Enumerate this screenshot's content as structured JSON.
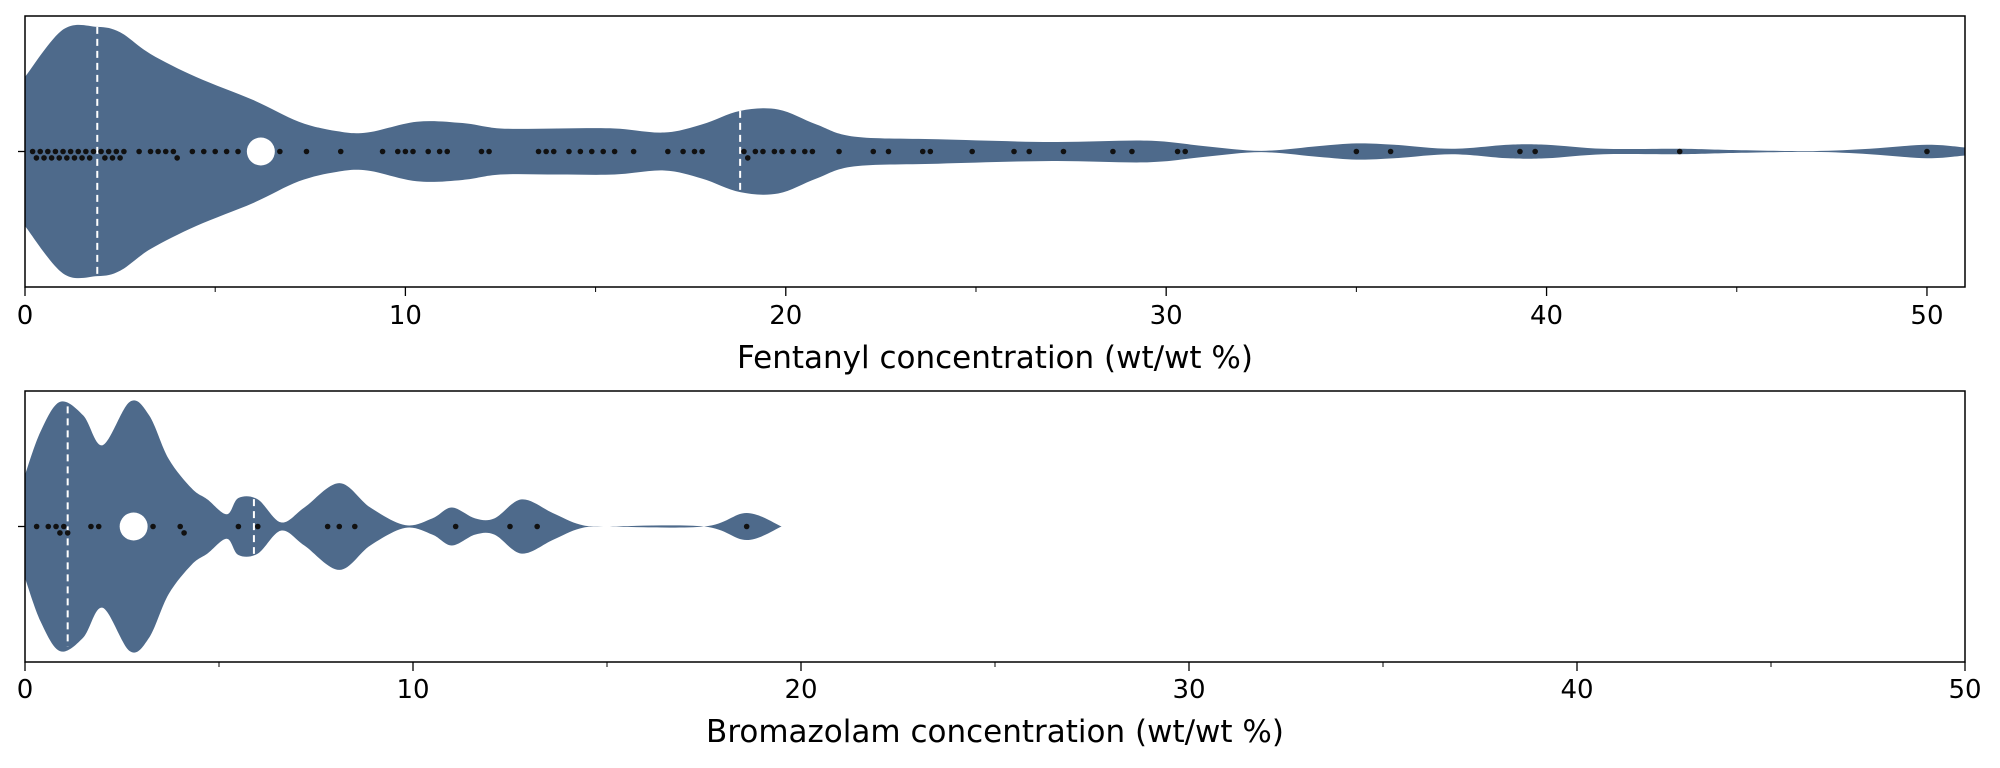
{
  "chart_data": [
    {
      "type": "violin",
      "xlabel": "Fentanyl concentration (wt/wt %)",
      "xlim": [
        0,
        51
      ],
      "x_ticks_major": [
        0,
        10,
        20,
        30,
        40,
        50
      ],
      "x_ticks_minor": [
        5,
        15,
        25,
        35,
        45
      ],
      "fill_color": "#4e6a8b",
      "point_color": "#111111",
      "mean": 6.2,
      "quartile_lines": [
        1.9,
        18.8
      ],
      "density_profile": [
        [
          0,
          0.55
        ],
        [
          1.0,
          0.9
        ],
        [
          1.9,
          0.92
        ],
        [
          2.5,
          0.88
        ],
        [
          3.3,
          0.72
        ],
        [
          4.5,
          0.55
        ],
        [
          6.0,
          0.38
        ],
        [
          7.2,
          0.22
        ],
        [
          8.2,
          0.15
        ],
        [
          9.0,
          0.14
        ],
        [
          10.3,
          0.22
        ],
        [
          11.5,
          0.21
        ],
        [
          12.5,
          0.17
        ],
        [
          14.0,
          0.17
        ],
        [
          15.5,
          0.17
        ],
        [
          16.8,
          0.14
        ],
        [
          17.8,
          0.2
        ],
        [
          18.8,
          0.3
        ],
        [
          19.8,
          0.31
        ],
        [
          20.8,
          0.2
        ],
        [
          21.8,
          0.11
        ],
        [
          24.0,
          0.09
        ],
        [
          27.0,
          0.07
        ],
        [
          29.5,
          0.08
        ],
        [
          31.0,
          0.04
        ],
        [
          32.5,
          0.005
        ],
        [
          34.0,
          0.04
        ],
        [
          35.0,
          0.06
        ],
        [
          36.0,
          0.05
        ],
        [
          37.5,
          0.02
        ],
        [
          39.0,
          0.05
        ],
        [
          40.0,
          0.05
        ],
        [
          41.5,
          0.02
        ],
        [
          43.5,
          0.02
        ],
        [
          45.0,
          0.01
        ],
        [
          47.0,
          0.003
        ],
        [
          48.5,
          0.02
        ],
        [
          50.0,
          0.05
        ],
        [
          51.0,
          0.03
        ]
      ],
      "points": [
        0.2,
        0.3,
        0.4,
        0.5,
        0.6,
        0.7,
        0.8,
        0.9,
        1.0,
        1.1,
        1.2,
        1.3,
        1.4,
        1.5,
        1.6,
        1.7,
        1.8,
        2.0,
        2.1,
        2.2,
        2.3,
        2.4,
        2.5,
        2.6,
        3.0,
        3.3,
        3.5,
        3.7,
        3.9,
        4.0,
        4.4,
        4.7,
        5.0,
        5.3,
        5.6,
        6.7,
        7.4,
        8.3,
        9.4,
        9.8,
        10.0,
        10.2,
        10.6,
        10.9,
        11.1,
        12.0,
        12.2,
        13.5,
        13.7,
        13.9,
        14.3,
        14.6,
        14.9,
        15.2,
        15.5,
        16.0,
        16.9,
        17.3,
        17.6,
        17.8,
        18.9,
        19.0,
        19.2,
        19.4,
        19.7,
        19.9,
        20.2,
        20.5,
        20.7,
        21.4,
        22.3,
        22.7,
        23.6,
        23.8,
        24.9,
        26.0,
        26.4,
        27.3,
        28.6,
        29.1,
        30.3,
        30.5,
        35.0,
        35.9,
        39.3,
        39.7,
        43.5,
        50.0
      ]
    },
    {
      "type": "violin",
      "xlabel": "Bromazolam concentration (wt/wt %)",
      "xlim": [
        0,
        50
      ],
      "x_ticks_major": [
        0,
        10,
        20,
        30,
        40,
        50
      ],
      "x_ticks_minor": [
        5,
        15,
        25,
        35,
        45
      ],
      "fill_color": "#4e6a8b",
      "point_color": "#111111",
      "mean": 2.8,
      "quartile_lines": [
        1.1,
        5.9
      ],
      "density_profile": [
        [
          0,
          0.38
        ],
        [
          0.4,
          0.7
        ],
        [
          0.9,
          0.92
        ],
        [
          1.5,
          0.82
        ],
        [
          2.0,
          0.6
        ],
        [
          2.7,
          0.92
        ],
        [
          3.2,
          0.82
        ],
        [
          3.7,
          0.5
        ],
        [
          4.3,
          0.28
        ],
        [
          4.7,
          0.2
        ],
        [
          5.2,
          0.09
        ],
        [
          5.5,
          0.21
        ],
        [
          6.0,
          0.2
        ],
        [
          6.6,
          0.03
        ],
        [
          7.2,
          0.14
        ],
        [
          8.1,
          0.32
        ],
        [
          8.9,
          0.14
        ],
        [
          9.8,
          0.01
        ],
        [
          10.5,
          0.06
        ],
        [
          11.0,
          0.14
        ],
        [
          11.6,
          0.06
        ],
        [
          12.1,
          0.06
        ],
        [
          12.8,
          0.2
        ],
        [
          13.6,
          0.1
        ],
        [
          14.3,
          0.015
        ],
        [
          15.0,
          0.0
        ],
        [
          17.5,
          0.0
        ],
        [
          18.6,
          0.1
        ],
        [
          19.5,
          0.0
        ]
      ],
      "points": [
        0.3,
        0.6,
        0.8,
        0.9,
        1.0,
        1.1,
        1.7,
        1.9,
        3.3,
        4.0,
        4.1,
        5.5,
        6.0,
        7.8,
        8.1,
        8.5,
        11.1,
        12.5,
        13.2,
        18.6
      ]
    }
  ]
}
